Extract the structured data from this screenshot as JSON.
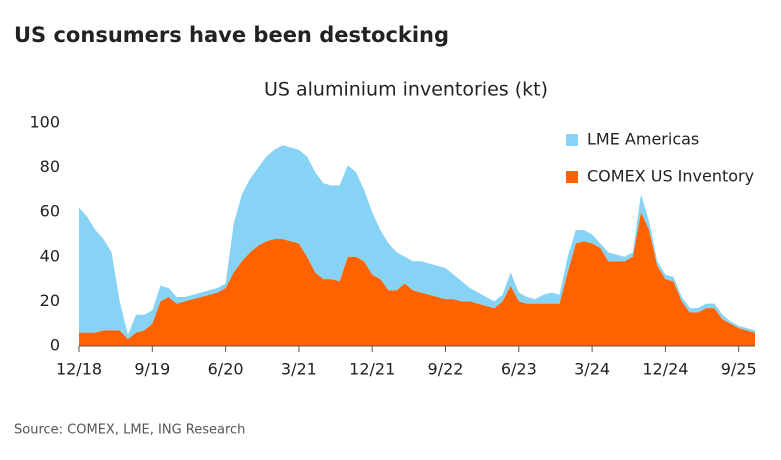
{
  "chart_data": {
    "type": "stacked_area",
    "title": "US consumers have been destocking",
    "subtitle": "US aluminium inventories (kt)",
    "source": "Source: COMEX, LME, ING Research",
    "categories": [
      "12/18",
      null,
      null,
      null,
      null,
      null,
      null,
      null,
      null,
      "9/19",
      null,
      null,
      null,
      null,
      null,
      null,
      null,
      null,
      "6/20",
      null,
      null,
      null,
      null,
      null,
      null,
      null,
      null,
      "3/21",
      null,
      null,
      null,
      null,
      null,
      null,
      null,
      null,
      "12/21",
      null,
      null,
      null,
      null,
      null,
      null,
      null,
      null,
      "9/22",
      null,
      null,
      null,
      null,
      null,
      null,
      null,
      null,
      "6/23",
      null,
      null,
      null,
      null,
      null,
      null,
      null,
      null,
      "3/24",
      null,
      null,
      null,
      null,
      null,
      null,
      null,
      null,
      "12/24",
      null,
      null,
      null,
      null,
      null,
      null,
      null,
      null,
      "9/25",
      null,
      null
    ],
    "series": [
      {
        "name": "LME Americas",
        "color": "#87d3f5",
        "values": [
          56,
          52,
          46,
          41,
          35,
          13,
          2,
          8,
          7,
          6,
          7,
          4,
          3,
          2,
          2,
          2,
          2,
          2,
          2,
          22,
          30,
          33,
          35,
          38,
          40,
          42,
          42,
          42,
          45,
          45,
          43,
          42,
          43,
          41,
          38,
          32,
          28,
          22,
          21,
          17,
          12,
          13,
          14,
          14,
          14,
          14,
          11,
          9,
          6,
          5,
          4,
          3,
          3,
          6,
          4,
          3,
          2,
          4,
          5,
          4,
          7,
          6,
          5,
          4,
          2,
          4,
          3,
          2,
          2,
          8,
          4,
          2,
          2,
          2,
          2,
          2,
          2,
          2,
          2,
          2,
          1,
          1,
          1,
          1
        ]
      },
      {
        "name": "COMEX US Inventory",
        "color": "#ff6200",
        "values": [
          6,
          6,
          6,
          7,
          7,
          7,
          3,
          6,
          7,
          10,
          20,
          22,
          19,
          20,
          21,
          22,
          23,
          24,
          26,
          33,
          38,
          42,
          45,
          47,
          48,
          48,
          47,
          46,
          40,
          33,
          30,
          30,
          29,
          40,
          40,
          38,
          32,
          30,
          25,
          25,
          28,
          25,
          24,
          23,
          22,
          21,
          21,
          20,
          20,
          19,
          18,
          17,
          20,
          27,
          20,
          19,
          19,
          19,
          19,
          19,
          33,
          46,
          47,
          46,
          44,
          38,
          38,
          38,
          40,
          60,
          52,
          36,
          30,
          29,
          20,
          15,
          15,
          17,
          17,
          12,
          10,
          8,
          7,
          6
        ]
      }
    ],
    "ylim": [
      0,
      100
    ],
    "yticks": [
      0,
      20,
      40,
      60,
      80,
      100
    ],
    "grid": false
  }
}
